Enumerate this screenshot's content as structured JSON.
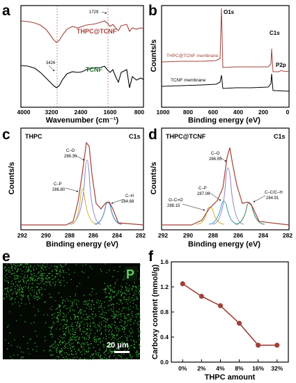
{
  "panels": {
    "a": {
      "label": "a",
      "xlabel": "Wavenumber (cm⁻¹)",
      "xticks": [
        "4000",
        "3200",
        "2400",
        "1600",
        "800"
      ],
      "series": [
        {
          "name": "THPC@TCNF",
          "color": "#a0413a"
        },
        {
          "name": "TCNF",
          "color": "#000000"
        }
      ],
      "annotations": [
        "1729",
        "3426"
      ]
    },
    "b": {
      "label": "b",
      "xlabel": "Binding energy (eV)",
      "ylabel": "Counts/s",
      "xticks": [
        "1000",
        "800",
        "600",
        "400",
        "200",
        "0"
      ],
      "series": [
        {
          "name": "THPC@TCNF membrane",
          "color": "#a0413a"
        },
        {
          "name": "TCNF membrane",
          "color": "#000000"
        }
      ],
      "peaks": [
        "O1s",
        "C1s",
        "P2p"
      ]
    },
    "c": {
      "label": "c",
      "title": "THPC",
      "region": "C1s",
      "xlabel": "Binding energy (eV)",
      "ylabel": "Counts/s",
      "xticks": [
        "292",
        "290",
        "288",
        "286",
        "284",
        "282"
      ],
      "components": [
        {
          "bond": "C–O",
          "energy": "286.30"
        },
        {
          "bond": "C–P",
          "energy": "286.80"
        },
        {
          "bond": "C–H",
          "energy": "284.68"
        }
      ]
    },
    "d": {
      "label": "d",
      "title": "THPC@TCNF",
      "region": "C1s",
      "xlabel": "Binding energy (eV)",
      "ylabel": "Counts/s",
      "xticks": [
        "292",
        "290",
        "288",
        "286",
        "284",
        "282"
      ],
      "components": [
        {
          "bond": "C–O",
          "energy": "286.55"
        },
        {
          "bond": "C–P",
          "energy": "287.06"
        },
        {
          "bond": "O–C=O",
          "energy": "288.15"
        },
        {
          "bond": "C–C/C–H",
          "energy": "284.91"
        }
      ]
    },
    "e": {
      "label": "e",
      "element": "P",
      "scale_bar": "20 μm"
    },
    "f": {
      "label": "f"
    }
  },
  "chart_data": {
    "type": "line",
    "categories": [
      "0%",
      "2%",
      "4%",
      "8%",
      "16%",
      "32%"
    ],
    "values": [
      1.25,
      1.05,
      0.9,
      0.62,
      0.27,
      0.27
    ],
    "xlabel": "THPC amount",
    "ylabel": "Carboxy content (mmol/g)",
    "ylim": [
      0.0,
      1.6
    ],
    "yticks": [
      "0.0",
      "0.4",
      "0.8",
      "1.2",
      "1.6"
    ],
    "color": "#a0413a"
  }
}
